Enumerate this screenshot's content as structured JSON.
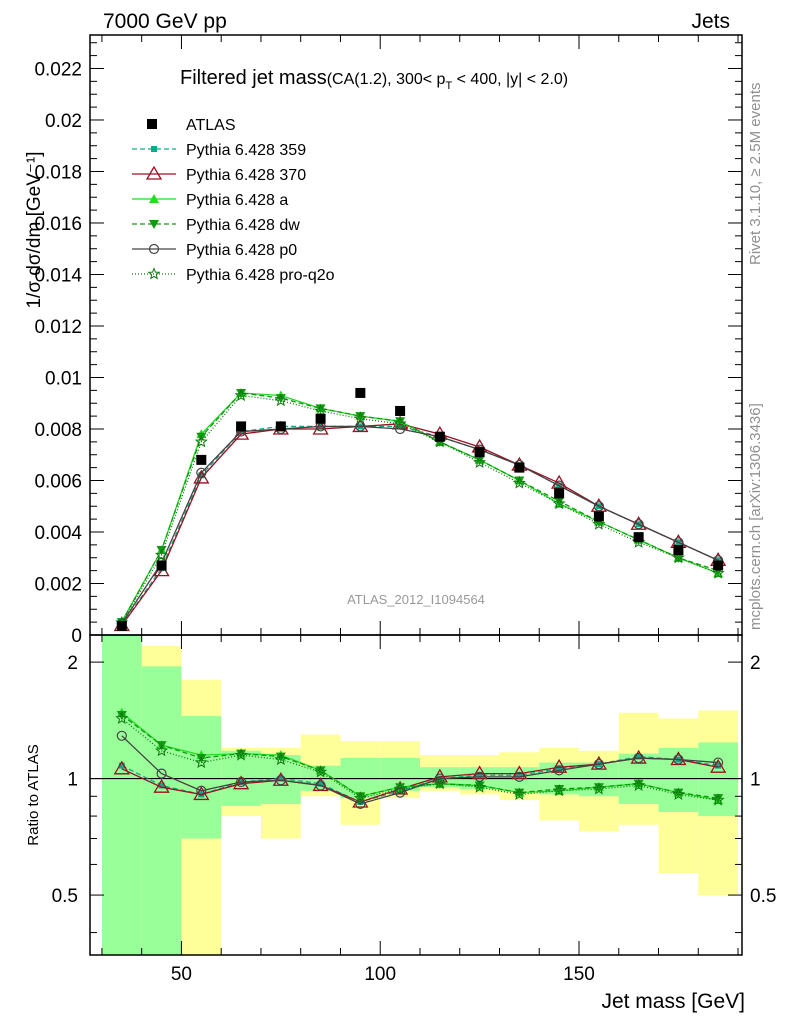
{
  "header": {
    "left": "7000 GeV pp",
    "right": "Jets"
  },
  "side": {
    "rivet": "Rivet 3.1.10, ≥ 2.5M events",
    "mcplots": "mcplots.cern.ch [arXiv:1306.3436]"
  },
  "chart_data": {
    "type": "line",
    "title_main": "Filtered jet mass",
    "title_sub_1": "(CA(1.2), 300< p",
    "title_sub_t": "T",
    "title_sub_2": " < 400, |y| < 2.0)",
    "analysis": "ATLAS_2012_I1094564",
    "xlabel": "Jet mass [GeV]",
    "ylabel": "1/σ dσ/dm [GeV⁻¹]",
    "ratio_ylabel": "Ratio to ATLAS",
    "xlim": [
      27,
      191
    ],
    "ylim": [
      0,
      0.0233
    ],
    "ratio_ylim": [
      0.35,
      2.35
    ],
    "x_ticks": [
      "50",
      "100",
      "150"
    ],
    "y_ticks": [
      "0",
      "0.002",
      "0.004",
      "0.006",
      "0.008",
      "0.01",
      "0.012",
      "0.014",
      "0.016",
      "0.018",
      "0.02",
      "0.022"
    ],
    "ratio_ticks": [
      "0.5",
      "1",
      "2"
    ],
    "x": [
      35,
      45,
      55,
      65,
      75,
      85,
      95,
      105,
      115,
      125,
      135,
      145,
      155,
      165,
      175,
      185
    ],
    "data": {
      "name": "ATLAS",
      "values": [
        0.00035,
        0.0027,
        0.0068,
        0.0081,
        0.0081,
        0.0084,
        0.0094,
        0.0087,
        0.0077,
        0.0071,
        0.0065,
        0.0055,
        0.0046,
        0.0038,
        0.0033,
        0.0027
      ]
    },
    "bands": [
      {
        "x0": 30,
        "x1": 40,
        "green": [
          0.35,
          2.35
        ],
        "yellow": [
          0.35,
          2.35
        ]
      },
      {
        "x0": 40,
        "x1": 50,
        "green": [
          0.35,
          1.95
        ],
        "yellow": [
          0.35,
          2.2
        ]
      },
      {
        "x0": 50,
        "x1": 60,
        "green": [
          0.7,
          1.45
        ],
        "yellow": [
          0.35,
          1.8
        ]
      },
      {
        "x0": 60,
        "x1": 70,
        "green": [
          0.85,
          1.18
        ],
        "yellow": [
          0.8,
          1.2
        ]
      },
      {
        "x0": 70,
        "x1": 80,
        "green": [
          0.86,
          1.15
        ],
        "yellow": [
          0.7,
          1.2
        ]
      },
      {
        "x0": 80,
        "x1": 90,
        "green": [
          0.93,
          1.08
        ],
        "yellow": [
          0.9,
          1.3
        ]
      },
      {
        "x0": 90,
        "x1": 100,
        "green": [
          0.89,
          1.13
        ],
        "yellow": [
          0.76,
          1.25
        ]
      },
      {
        "x0": 100,
        "x1": 110,
        "green": [
          0.93,
          1.13
        ],
        "yellow": [
          0.89,
          1.25
        ]
      },
      {
        "x0": 110,
        "x1": 120,
        "green": [
          0.95,
          1.07
        ],
        "yellow": [
          0.93,
          1.15
        ]
      },
      {
        "x0": 120,
        "x1": 130,
        "green": [
          0.94,
          1.07
        ],
        "yellow": [
          0.91,
          1.15
        ]
      },
      {
        "x0": 130,
        "x1": 140,
        "green": [
          0.93,
          1.07
        ],
        "yellow": [
          0.88,
          1.17
        ]
      },
      {
        "x0": 140,
        "x1": 150,
        "green": [
          0.91,
          1.1
        ],
        "yellow": [
          0.78,
          1.2
        ]
      },
      {
        "x0": 150,
        "x1": 160,
        "green": [
          0.9,
          1.1
        ],
        "yellow": [
          0.73,
          1.18
        ]
      },
      {
        "x0": 160,
        "x1": 170,
        "green": [
          0.86,
          1.16
        ],
        "yellow": [
          0.76,
          1.48
        ]
      },
      {
        "x0": 170,
        "x1": 180,
        "green": [
          0.82,
          1.2
        ],
        "yellow": [
          0.57,
          1.43
        ]
      },
      {
        "x0": 180,
        "x1": 190,
        "green": [
          0.8,
          1.24
        ],
        "yellow": [
          0.5,
          1.5
        ]
      }
    ],
    "series": [
      {
        "name": "Pythia 6.428 359",
        "color": "#11aa88",
        "dash": "5,3",
        "marker": "square-small",
        "values": [
          0.00038,
          0.0026,
          0.0062,
          0.0079,
          0.0081,
          0.0081,
          0.0081,
          0.0081,
          0.0077,
          0.0072,
          0.0066,
          0.0058,
          0.005,
          0.0043,
          0.0036,
          0.0029
        ],
        "ratio": [
          1.08,
          0.96,
          0.91,
          0.98,
          1.0,
          0.97,
          0.87,
          0.93,
          1.0,
          1.02,
          1.02,
          1.06,
          1.09,
          1.14,
          1.12,
          1.08
        ]
      },
      {
        "name": "Pythia 6.428 370",
        "color": "#991122",
        "dash": "",
        "marker": "triangle-open",
        "values": [
          0.00037,
          0.0025,
          0.0061,
          0.0078,
          0.008,
          0.008,
          0.0081,
          0.0082,
          0.0078,
          0.0073,
          0.0066,
          0.0059,
          0.005,
          0.0043,
          0.0036,
          0.0029
        ],
        "ratio": [
          1.06,
          0.95,
          0.91,
          0.97,
          0.99,
          0.96,
          0.87,
          0.94,
          1.01,
          1.03,
          1.03,
          1.07,
          1.09,
          1.13,
          1.12,
          1.07
        ]
      },
      {
        "name": "Pythia 6.428 a",
        "color": "#22dd22",
        "dash": "",
        "marker": "triangle-filled",
        "values": [
          0.00052,
          0.0033,
          0.0078,
          0.0094,
          0.0093,
          0.0088,
          0.0085,
          0.0083,
          0.0075,
          0.0068,
          0.006,
          0.0051,
          0.0044,
          0.0037,
          0.003,
          0.0024
        ],
        "ratio": [
          1.48,
          1.22,
          1.15,
          1.16,
          1.15,
          1.05,
          0.9,
          0.95,
          0.97,
          0.96,
          0.92,
          0.93,
          0.95,
          0.97,
          0.92,
          0.88
        ]
      },
      {
        "name": "Pythia 6.428 dw",
        "color": "#119911",
        "dash": "5,3",
        "marker": "triangle-down",
        "values": [
          0.0005,
          0.0033,
          0.0077,
          0.0094,
          0.0092,
          0.0088,
          0.0085,
          0.0083,
          0.0075,
          0.0068,
          0.006,
          0.0052,
          0.0044,
          0.0037,
          0.003,
          0.0025
        ],
        "ratio": [
          1.46,
          1.22,
          1.13,
          1.16,
          1.14,
          1.05,
          0.9,
          0.95,
          0.97,
          0.96,
          0.92,
          0.94,
          0.95,
          0.97,
          0.92,
          0.89
        ]
      },
      {
        "name": "Pythia 6.428 p0",
        "color": "#444444",
        "dash": "",
        "marker": "circle-open",
        "values": [
          0.00045,
          0.0028,
          0.0063,
          0.0079,
          0.008,
          0.0081,
          0.0081,
          0.008,
          0.0077,
          0.0072,
          0.0066,
          0.0058,
          0.005,
          0.0043,
          0.0036,
          0.0029
        ],
        "ratio": [
          1.29,
          1.03,
          0.93,
          0.98,
          0.99,
          0.96,
          0.86,
          0.92,
          1.0,
          1.01,
          1.01,
          1.05,
          1.09,
          1.13,
          1.12,
          1.1
        ]
      },
      {
        "name": "Pythia 6.428 pro-q2o",
        "color": "#117711",
        "dash": "1,2",
        "marker": "star",
        "values": [
          0.00048,
          0.0031,
          0.0075,
          0.0093,
          0.0091,
          0.0087,
          0.0084,
          0.0082,
          0.0075,
          0.0067,
          0.0059,
          0.0051,
          0.0043,
          0.0036,
          0.003,
          0.0024
        ],
        "ratio": [
          1.43,
          1.18,
          1.1,
          1.15,
          1.12,
          1.04,
          0.89,
          0.94,
          0.97,
          0.95,
          0.91,
          0.93,
          0.94,
          0.96,
          0.91,
          0.88
        ]
      }
    ]
  }
}
